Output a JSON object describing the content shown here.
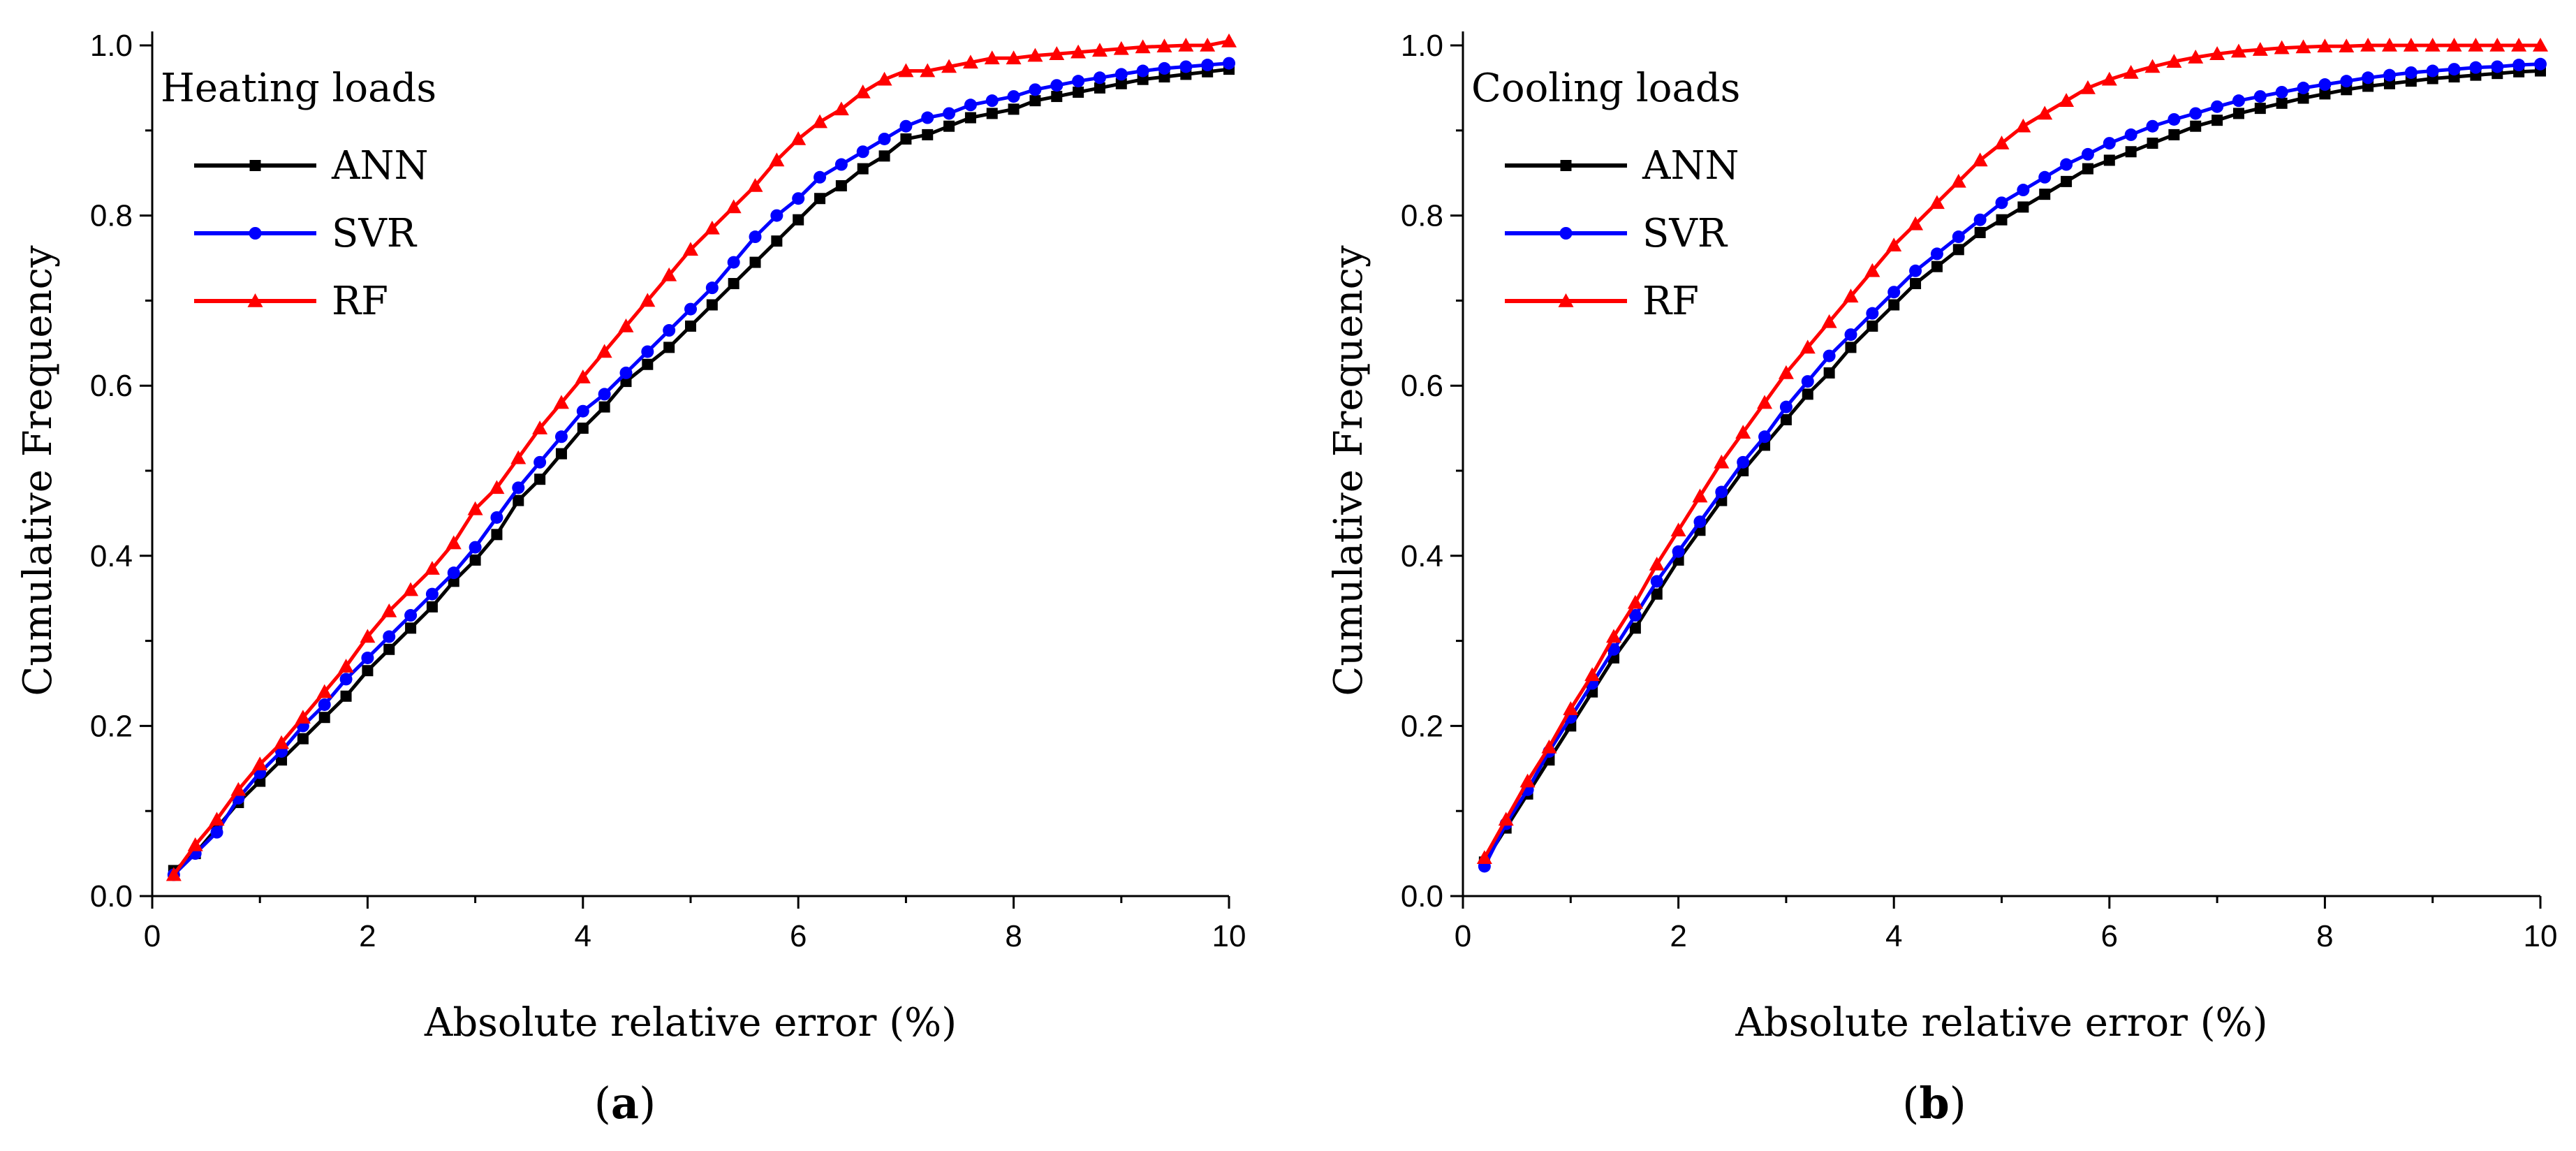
{
  "colors": {
    "ANN": "#000000",
    "SVR": "#0000ff",
    "RF": "#ff0000"
  },
  "chart_data": [
    {
      "type": "line",
      "title": "Heating loads",
      "caption_open": "(",
      "caption_letter": "a",
      "caption_close": ")",
      "xlabel": "Absolute relative error (%)",
      "ylabel": "Cumulative Frequency",
      "xlim": [
        0,
        10
      ],
      "ylim": [
        0,
        1.0
      ],
      "xticks": [
        "0",
        "2",
        "4",
        "6",
        "8",
        "10"
      ],
      "yticks": [
        "0.0",
        "0.2",
        "0.4",
        "0.6",
        "0.8",
        "1.0"
      ],
      "legend_position": "top-left",
      "series": [
        {
          "name": "ANN",
          "marker": "square",
          "x": [
            0.2,
            0.4,
            0.6,
            0.8,
            1,
            1.2,
            1.4,
            1.6,
            1.8,
            2,
            2.2,
            2.4,
            2.6,
            2.8,
            3,
            3.2,
            3.4,
            3.6,
            3.8,
            4,
            4.2,
            4.4,
            4.6,
            4.8,
            5,
            5.2,
            5.4,
            5.6,
            5.8,
            6,
            6.2,
            6.4,
            6.6,
            6.8,
            7,
            7.2,
            7.4,
            7.6,
            7.8,
            8,
            8.2,
            8.4,
            8.6,
            8.8,
            9,
            9.2,
            9.4,
            9.6,
            9.8,
            10
          ],
          "y": [
            0.03,
            0.05,
            0.08,
            0.11,
            0.135,
            0.16,
            0.185,
            0.21,
            0.235,
            0.265,
            0.29,
            0.315,
            0.34,
            0.37,
            0.395,
            0.425,
            0.465,
            0.49,
            0.52,
            0.55,
            0.575,
            0.605,
            0.625,
            0.645,
            0.67,
            0.695,
            0.72,
            0.745,
            0.77,
            0.795,
            0.82,
            0.835,
            0.855,
            0.87,
            0.89,
            0.895,
            0.905,
            0.915,
            0.92,
            0.925,
            0.935,
            0.94,
            0.945,
            0.95,
            0.955,
            0.96,
            0.963,
            0.966,
            0.969,
            0.972
          ]
        },
        {
          "name": "SVR",
          "marker": "circle",
          "x": [
            0.2,
            0.4,
            0.6,
            0.8,
            1,
            1.2,
            1.4,
            1.6,
            1.8,
            2,
            2.2,
            2.4,
            2.6,
            2.8,
            3,
            3.2,
            3.4,
            3.6,
            3.8,
            4,
            4.2,
            4.4,
            4.6,
            4.8,
            5,
            5.2,
            5.4,
            5.6,
            5.8,
            6,
            6.2,
            6.4,
            6.6,
            6.8,
            7,
            7.2,
            7.4,
            7.6,
            7.8,
            8,
            8.2,
            8.4,
            8.6,
            8.8,
            9,
            9.2,
            9.4,
            9.6,
            9.8,
            10
          ],
          "y": [
            0.025,
            0.05,
            0.075,
            0.115,
            0.145,
            0.17,
            0.2,
            0.225,
            0.255,
            0.28,
            0.305,
            0.33,
            0.355,
            0.38,
            0.41,
            0.445,
            0.48,
            0.51,
            0.54,
            0.57,
            0.59,
            0.615,
            0.64,
            0.665,
            0.69,
            0.715,
            0.745,
            0.775,
            0.8,
            0.82,
            0.845,
            0.86,
            0.875,
            0.89,
            0.905,
            0.915,
            0.92,
            0.93,
            0.935,
            0.94,
            0.948,
            0.953,
            0.958,
            0.962,
            0.966,
            0.97,
            0.973,
            0.975,
            0.977,
            0.979
          ]
        },
        {
          "name": "RF",
          "marker": "triangle",
          "x": [
            0.2,
            0.4,
            0.6,
            0.8,
            1,
            1.2,
            1.4,
            1.6,
            1.8,
            2,
            2.2,
            2.4,
            2.6,
            2.8,
            3,
            3.2,
            3.4,
            3.6,
            3.8,
            4,
            4.2,
            4.4,
            4.6,
            4.8,
            5,
            5.2,
            5.4,
            5.6,
            5.8,
            6,
            6.2,
            6.4,
            6.6,
            6.8,
            7,
            7.2,
            7.4,
            7.6,
            7.8,
            8,
            8.2,
            8.4,
            8.6,
            8.8,
            9,
            9.2,
            9.4,
            9.6,
            9.8,
            10
          ],
          "y": [
            0.025,
            0.06,
            0.09,
            0.125,
            0.155,
            0.18,
            0.21,
            0.24,
            0.27,
            0.305,
            0.335,
            0.36,
            0.385,
            0.415,
            0.455,
            0.48,
            0.515,
            0.55,
            0.58,
            0.61,
            0.64,
            0.67,
            0.7,
            0.73,
            0.76,
            0.785,
            0.81,
            0.835,
            0.865,
            0.89,
            0.91,
            0.925,
            0.945,
            0.96,
            0.97,
            0.97,
            0.975,
            0.98,
            0.985,
            0.985,
            0.988,
            0.99,
            0.992,
            0.994,
            0.996,
            0.998,
            0.999,
            1.0,
            1.0,
            1.005
          ]
        }
      ]
    },
    {
      "type": "line",
      "title": "Cooling loads",
      "caption_open": "(",
      "caption_letter": "b",
      "caption_close": ")",
      "xlabel": "Absolute relative error (%)",
      "ylabel": "Cumulative Frequency",
      "xlim": [
        0,
        10
      ],
      "ylim": [
        0,
        1.0
      ],
      "xticks": [
        "0",
        "2",
        "4",
        "6",
        "8",
        "10"
      ],
      "yticks": [
        "0.0",
        "0.2",
        "0.4",
        "0.6",
        "0.8",
        "1.0"
      ],
      "legend_position": "top-left",
      "series": [
        {
          "name": "ANN",
          "marker": "square",
          "x": [
            0.2,
            0.4,
            0.6,
            0.8,
            1,
            1.2,
            1.4,
            1.6,
            1.8,
            2,
            2.2,
            2.4,
            2.6,
            2.8,
            3,
            3.2,
            3.4,
            3.6,
            3.8,
            4,
            4.2,
            4.4,
            4.6,
            4.8,
            5,
            5.2,
            5.4,
            5.6,
            5.8,
            6,
            6.2,
            6.4,
            6.6,
            6.8,
            7,
            7.2,
            7.4,
            7.6,
            7.8,
            8,
            8.2,
            8.4,
            8.6,
            8.8,
            9,
            9.2,
            9.4,
            9.6,
            9.8,
            10
          ],
          "y": [
            0.04,
            0.08,
            0.12,
            0.16,
            0.2,
            0.24,
            0.28,
            0.315,
            0.355,
            0.395,
            0.43,
            0.465,
            0.5,
            0.53,
            0.56,
            0.59,
            0.615,
            0.645,
            0.67,
            0.695,
            0.72,
            0.74,
            0.76,
            0.78,
            0.795,
            0.81,
            0.825,
            0.84,
            0.855,
            0.865,
            0.875,
            0.885,
            0.895,
            0.905,
            0.912,
            0.92,
            0.926,
            0.932,
            0.938,
            0.943,
            0.948,
            0.952,
            0.955,
            0.958,
            0.961,
            0.963,
            0.965,
            0.967,
            0.969,
            0.97
          ]
        },
        {
          "name": "SVR",
          "marker": "circle",
          "x": [
            0.2,
            0.4,
            0.6,
            0.8,
            1,
            1.2,
            1.4,
            1.6,
            1.8,
            2,
            2.2,
            2.4,
            2.6,
            2.8,
            3,
            3.2,
            3.4,
            3.6,
            3.8,
            4,
            4.2,
            4.4,
            4.6,
            4.8,
            5,
            5.2,
            5.4,
            5.6,
            5.8,
            6,
            6.2,
            6.4,
            6.6,
            6.8,
            7,
            7.2,
            7.4,
            7.6,
            7.8,
            8,
            8.2,
            8.4,
            8.6,
            8.8,
            9,
            9.2,
            9.4,
            9.6,
            9.8,
            10
          ],
          "y": [
            0.035,
            0.085,
            0.125,
            0.17,
            0.21,
            0.25,
            0.29,
            0.33,
            0.37,
            0.405,
            0.44,
            0.475,
            0.51,
            0.54,
            0.575,
            0.605,
            0.635,
            0.66,
            0.685,
            0.71,
            0.735,
            0.755,
            0.775,
            0.795,
            0.815,
            0.83,
            0.845,
            0.86,
            0.872,
            0.885,
            0.895,
            0.905,
            0.913,
            0.92,
            0.928,
            0.935,
            0.94,
            0.945,
            0.95,
            0.954,
            0.958,
            0.962,
            0.965,
            0.968,
            0.97,
            0.972,
            0.974,
            0.975,
            0.977,
            0.978
          ]
        },
        {
          "name": "RF",
          "marker": "triangle",
          "x": [
            0.2,
            0.4,
            0.6,
            0.8,
            1,
            1.2,
            1.4,
            1.6,
            1.8,
            2,
            2.2,
            2.4,
            2.6,
            2.8,
            3,
            3.2,
            3.4,
            3.6,
            3.8,
            4,
            4.2,
            4.4,
            4.6,
            4.8,
            5,
            5.2,
            5.4,
            5.6,
            5.8,
            6,
            6.2,
            6.4,
            6.6,
            6.8,
            7,
            7.2,
            7.4,
            7.6,
            7.8,
            8,
            8.2,
            8.4,
            8.6,
            8.8,
            9,
            9.2,
            9.4,
            9.6,
            9.8,
            10
          ],
          "y": [
            0.045,
            0.09,
            0.135,
            0.175,
            0.22,
            0.26,
            0.305,
            0.345,
            0.39,
            0.43,
            0.47,
            0.51,
            0.545,
            0.58,
            0.615,
            0.645,
            0.675,
            0.705,
            0.735,
            0.765,
            0.79,
            0.815,
            0.84,
            0.865,
            0.885,
            0.905,
            0.92,
            0.935,
            0.95,
            0.96,
            0.968,
            0.975,
            0.981,
            0.986,
            0.99,
            0.993,
            0.995,
            0.997,
            0.998,
            0.999,
            0.999,
            1.0,
            1.0,
            1.0,
            1.0,
            1.0,
            1.0,
            1.0,
            1.0,
            1.0
          ]
        }
      ]
    }
  ]
}
